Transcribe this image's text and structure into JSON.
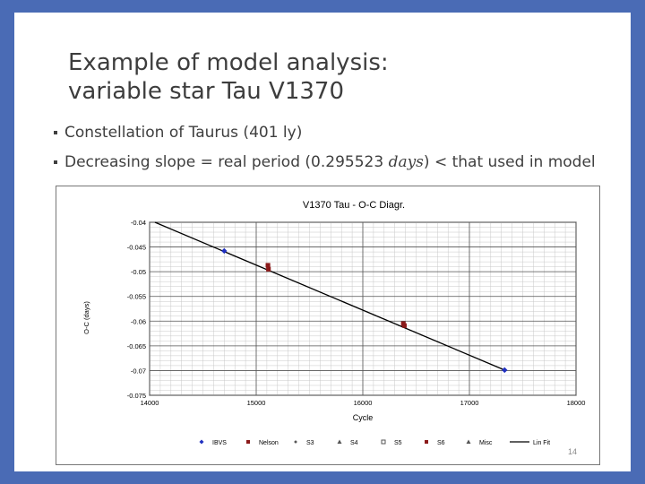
{
  "slide": {
    "title_line1": "Example of model analysis:",
    "title_line2": "variable star  Tau V1370",
    "bullets": [
      {
        "text": "Constellation of Taurus (401 ly)"
      },
      {
        "pre": "Decreasing slope = real period (0.295523 ",
        "italic": "days",
        "post": ") < that used in model"
      }
    ],
    "page_number": "14"
  },
  "colors": {
    "slide_border": "#4a6bb5",
    "ibvs": "#2030c0",
    "nelson": "#8b1a1a",
    "fit": "#000000"
  },
  "chart_data": {
    "type": "scatter",
    "title": "V1370 Tau - O-C Diagr.",
    "xlabel": "Cycle",
    "ylabel": "O-C (days)",
    "xlim": [
      14000,
      18000
    ],
    "ylim": [
      -0.075,
      -0.04
    ],
    "x_ticks": [
      14000,
      15000,
      16000,
      17000,
      18000
    ],
    "y_ticks": [
      -0.04,
      -0.045,
      -0.05,
      -0.055,
      -0.06,
      -0.065,
      -0.07,
      -0.075
    ],
    "x_tick_labels": [
      "14000",
      "15000",
      "16000",
      "17000",
      "18000"
    ],
    "y_tick_labels": [
      "-0.04",
      "-0.045",
      "-0.05",
      "-0.055",
      "-0.06",
      "-0.065",
      "-0.07",
      "-0.075"
    ],
    "grid": true,
    "legend_position": "bottom",
    "series": [
      {
        "name": "IBVS",
        "marker": "diamond",
        "color": "#2030c0",
        "points": [
          [
            14700,
            -0.0458
          ],
          [
            17330,
            -0.0699
          ]
        ]
      },
      {
        "name": "Nelson",
        "marker": "square",
        "color": "#8b1a1a",
        "points": [
          [
            15110,
            -0.0487
          ],
          [
            15115,
            -0.0495
          ],
          [
            16380,
            -0.0605
          ],
          [
            16390,
            -0.0609
          ]
        ]
      },
      {
        "name": "S3",
        "marker": "diamond-small",
        "color": "#555555",
        "points": []
      },
      {
        "name": "S4",
        "marker": "triangle",
        "color": "#555555",
        "points": []
      },
      {
        "name": "S5",
        "marker": "square-outline",
        "color": "#555555",
        "points": []
      },
      {
        "name": "S6",
        "marker": "square",
        "color": "#8b1a1a",
        "points": []
      },
      {
        "name": "Misc",
        "marker": "triangle",
        "color": "#555555",
        "points": []
      },
      {
        "name": "Lin Fit",
        "marker": "line",
        "color": "#000000",
        "line": [
          [
            14050,
            -0.04
          ],
          [
            17330,
            -0.0699
          ]
        ]
      }
    ]
  }
}
